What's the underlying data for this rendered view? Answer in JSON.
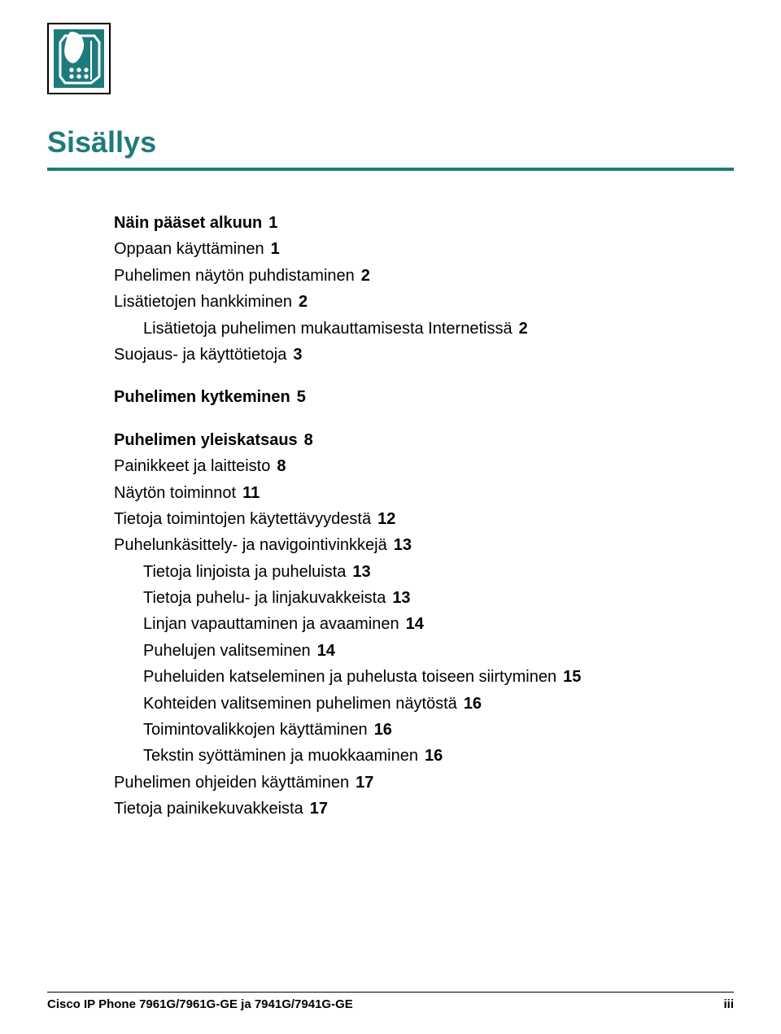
{
  "colors": {
    "accent": "#1f7b7b",
    "text": "#000000",
    "background": "#ffffff",
    "rule": "#1f7b7b",
    "footer_rule": "#000000"
  },
  "typography": {
    "title_fontsize": 36,
    "title_weight": "bold",
    "body_fontsize": 20,
    "line_height": 1.62,
    "footer_fontsize": 15
  },
  "title": "Sisällys",
  "toc": [
    {
      "level": 1,
      "bold": true,
      "first": true,
      "text": "Näin pääset alkuun",
      "page": "1"
    },
    {
      "level": 2,
      "text": "Oppaan käyttäminen",
      "page": "1"
    },
    {
      "level": 2,
      "text": "Puhelimen näytön puhdistaminen",
      "page": "2"
    },
    {
      "level": 2,
      "text": "Lisätietojen hankkiminen",
      "page": "2"
    },
    {
      "level": 3,
      "text": "Lisätietoja puhelimen mukauttamisesta Internetissä",
      "page": "2"
    },
    {
      "level": 2,
      "text": "Suojaus- ja käyttötietoja",
      "page": "3"
    },
    {
      "level": 1,
      "bold": true,
      "text": "Puhelimen kytkeminen",
      "page": "5"
    },
    {
      "level": 1,
      "bold": true,
      "text": "Puhelimen yleiskatsaus",
      "page": "8"
    },
    {
      "level": 2,
      "text": "Painikkeet ja laitteisto",
      "page": "8"
    },
    {
      "level": 2,
      "text": "Näytön toiminnot",
      "page": "11"
    },
    {
      "level": 2,
      "text": "Tietoja toimintojen käytettävyydestä",
      "page": "12"
    },
    {
      "level": 2,
      "text": "Puhelunkäsittely- ja navigointivinkkejä",
      "page": "13"
    },
    {
      "level": 3,
      "text": "Tietoja linjoista ja puheluista",
      "page": "13"
    },
    {
      "level": 3,
      "text": "Tietoja puhelu- ja linjakuvakkeista",
      "page": "13"
    },
    {
      "level": 3,
      "text": "Linjan vapauttaminen ja avaaminen",
      "page": "14"
    },
    {
      "level": 3,
      "text": "Puhelujen valitseminen",
      "page": "14"
    },
    {
      "level": 3,
      "text": "Puheluiden katseleminen ja puhelusta toiseen siirtyminen",
      "page": "15"
    },
    {
      "level": 3,
      "text": "Kohteiden valitseminen puhelimen näytöstä",
      "page": "16"
    },
    {
      "level": 3,
      "text": "Toimintovalikkojen käyttäminen",
      "page": "16"
    },
    {
      "level": 3,
      "text": "Tekstin syöttäminen ja muokkaaminen",
      "page": "16"
    },
    {
      "level": 2,
      "text": "Puhelimen ohjeiden käyttäminen",
      "page": "17"
    },
    {
      "level": 2,
      "text": "Tietoja painikekuvakkeista",
      "page": "17"
    }
  ],
  "footer": {
    "left": "Cisco IP Phone 7961G/7961G-GE ja 7941G/7941G-GE",
    "right": "iii"
  }
}
